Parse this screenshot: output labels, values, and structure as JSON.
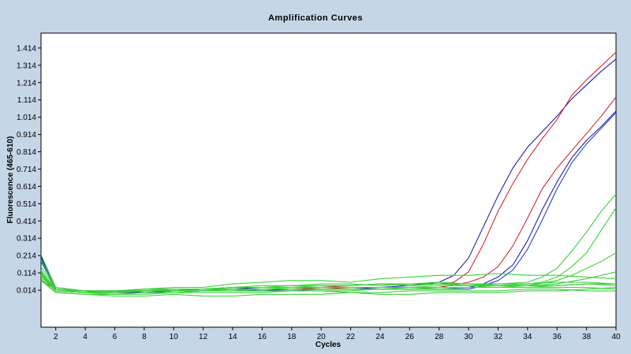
{
  "chart_data": {
    "type": "line",
    "title": "Amplification Curves",
    "xlabel": "Cycles",
    "ylabel": "Fluorescence (465-610)",
    "xlim": [
      1,
      40
    ],
    "ylim": [
      -0.2,
      1.5
    ],
    "x_ticks": [
      2,
      4,
      6,
      8,
      10,
      12,
      14,
      16,
      18,
      20,
      22,
      24,
      26,
      28,
      30,
      32,
      34,
      36,
      38,
      40
    ],
    "y_ticks": [
      0.014,
      0.114,
      0.214,
      0.314,
      0.414,
      0.514,
      0.614,
      0.714,
      0.814,
      0.914,
      1.014,
      1.114,
      1.214,
      1.314,
      1.414
    ],
    "y_tick_labels": [
      "0.014",
      "0.114",
      "0.214",
      "0.314",
      "0.414",
      "0.514",
      "0.614",
      "0.714",
      "0.814",
      "0.914",
      "1.014",
      "1.114",
      "1.214",
      "1.314",
      "1.414"
    ],
    "grid": false,
    "legend": "none",
    "series": [
      {
        "color": "#1f1fa8",
        "x": [
          1,
          2,
          4,
          6,
          8,
          10,
          12,
          14,
          16,
          18,
          20,
          22,
          24,
          26,
          28,
          29,
          30,
          31,
          32,
          33,
          34,
          35,
          36,
          37,
          38,
          39,
          40
        ],
        "y": [
          0.2,
          0.02,
          0.01,
          0.0,
          0.01,
          0.01,
          0.02,
          0.03,
          0.02,
          0.02,
          0.03,
          0.03,
          0.03,
          0.04,
          0.06,
          0.1,
          0.2,
          0.38,
          0.56,
          0.72,
          0.84,
          0.93,
          1.02,
          1.12,
          1.2,
          1.28,
          1.35
        ]
      },
      {
        "color": "#d42a2a",
        "x": [
          1,
          2,
          4,
          6,
          8,
          10,
          12,
          14,
          16,
          18,
          20,
          22,
          24,
          26,
          28,
          29,
          30,
          31,
          32,
          33,
          34,
          35,
          36,
          37,
          38,
          39,
          40
        ],
        "y": [
          0.07,
          0.02,
          0.01,
          0.0,
          0.01,
          0.02,
          0.02,
          0.02,
          0.02,
          0.02,
          0.03,
          0.04,
          0.05,
          0.04,
          0.05,
          0.06,
          0.12,
          0.28,
          0.47,
          0.63,
          0.77,
          0.89,
          1.0,
          1.14,
          1.23,
          1.31,
          1.39
        ]
      },
      {
        "color": "#d42a2a",
        "x": [
          1,
          2,
          4,
          6,
          8,
          10,
          12,
          14,
          16,
          18,
          20,
          22,
          24,
          26,
          28,
          30,
          31,
          32,
          33,
          34,
          35,
          36,
          37,
          38,
          39,
          40
        ],
        "y": [
          0.12,
          0.02,
          0.01,
          0.01,
          0.01,
          0.01,
          0.02,
          0.02,
          0.02,
          0.02,
          0.02,
          0.03,
          0.03,
          0.03,
          0.03,
          0.06,
          0.09,
          0.15,
          0.27,
          0.43,
          0.6,
          0.72,
          0.82,
          0.92,
          1.02,
          1.13
        ]
      },
      {
        "color": "#1f1fa8",
        "x": [
          1,
          2,
          4,
          6,
          8,
          10,
          12,
          14,
          16,
          18,
          20,
          22,
          24,
          26,
          28,
          30,
          31,
          32,
          33,
          34,
          35,
          36,
          37,
          38,
          39,
          40
        ],
        "y": [
          0.21,
          0.01,
          0.0,
          0.01,
          0.0,
          0.01,
          0.02,
          0.02,
          0.01,
          0.02,
          0.02,
          0.02,
          0.03,
          0.03,
          0.03,
          0.03,
          0.05,
          0.09,
          0.16,
          0.3,
          0.48,
          0.64,
          0.78,
          0.88,
          0.96,
          1.05
        ]
      },
      {
        "color": "#2b3fd0",
        "x": [
          1,
          2,
          4,
          6,
          8,
          10,
          12,
          14,
          16,
          18,
          20,
          22,
          24,
          26,
          28,
          30,
          31,
          32,
          33,
          34,
          35,
          36,
          37,
          38,
          39,
          40
        ],
        "y": [
          0.18,
          0.02,
          0.01,
          0.0,
          0.0,
          0.01,
          0.01,
          0.02,
          0.01,
          0.01,
          0.02,
          0.02,
          0.02,
          0.02,
          0.02,
          0.02,
          0.04,
          0.07,
          0.13,
          0.25,
          0.42,
          0.6,
          0.75,
          0.86,
          0.95,
          1.04
        ]
      },
      {
        "color": "#3ad23a",
        "x": [
          1,
          2,
          4,
          6,
          8,
          10,
          12,
          14,
          16,
          18,
          20,
          22,
          24,
          26,
          28,
          30,
          32,
          34,
          35,
          36,
          37,
          38,
          39,
          40
        ],
        "y": [
          0.22,
          0.03,
          0.01,
          0.01,
          0.02,
          0.02,
          0.02,
          0.02,
          0.02,
          0.03,
          0.03,
          0.03,
          0.03,
          0.03,
          0.04,
          0.04,
          0.05,
          0.06,
          0.09,
          0.14,
          0.24,
          0.35,
          0.47,
          0.57
        ]
      },
      {
        "color": "#3ad23a",
        "x": [
          1,
          2,
          4,
          6,
          8,
          10,
          12,
          14,
          16,
          18,
          20,
          22,
          24,
          26,
          28,
          30,
          32,
          34,
          35,
          36,
          37,
          38,
          39,
          40
        ],
        "y": [
          0.15,
          0.02,
          0.0,
          0.01,
          0.01,
          0.01,
          0.02,
          0.02,
          0.02,
          0.02,
          0.02,
          0.02,
          0.02,
          0.03,
          0.03,
          0.03,
          0.04,
          0.05,
          0.06,
          0.09,
          0.15,
          0.23,
          0.36,
          0.49
        ]
      },
      {
        "color": "#3ad23a",
        "x": [
          1,
          2,
          4,
          6,
          8,
          10,
          12,
          14,
          16,
          18,
          20,
          22,
          24,
          26,
          28,
          30,
          32,
          34,
          36,
          37,
          38,
          39,
          40
        ],
        "y": [
          0.13,
          0.01,
          0.0,
          0.0,
          0.01,
          0.01,
          0.01,
          0.02,
          0.02,
          0.02,
          0.02,
          0.02,
          0.02,
          0.02,
          0.03,
          0.03,
          0.03,
          0.04,
          0.07,
          0.1,
          0.14,
          0.18,
          0.23
        ]
      },
      {
        "color": "#3ad23a",
        "x": [
          1,
          2,
          4,
          6,
          8,
          10,
          12,
          14,
          16,
          18,
          20,
          22,
          24,
          26,
          28,
          30,
          32,
          34,
          36,
          38,
          40
        ],
        "y": [
          0.1,
          0.02,
          0.01,
          0.01,
          0.02,
          0.03,
          0.03,
          0.05,
          0.06,
          0.07,
          0.07,
          0.06,
          0.08,
          0.09,
          0.1,
          0.1,
          0.11,
          0.1,
          0.1,
          0.09,
          0.08
        ]
      },
      {
        "color": "#3ad23a",
        "x": [
          1,
          2,
          4,
          6,
          8,
          10,
          12,
          14,
          16,
          18,
          20,
          22,
          24,
          26,
          28,
          30,
          32,
          34,
          36,
          38,
          40
        ],
        "y": [
          0.12,
          0.01,
          0.0,
          0.01,
          0.01,
          0.01,
          0.02,
          0.03,
          0.04,
          0.04,
          0.05,
          0.05,
          0.04,
          0.05,
          0.05,
          0.04,
          0.04,
          0.04,
          0.05,
          0.08,
          0.12
        ]
      },
      {
        "color": "#3ad23a",
        "x": [
          1,
          2,
          4,
          6,
          8,
          10,
          12,
          14,
          16,
          18,
          20,
          22,
          24,
          26,
          28,
          30,
          32,
          34,
          36,
          38,
          40
        ],
        "y": [
          0.11,
          0.02,
          0.01,
          0.0,
          0.02,
          0.02,
          0.02,
          0.03,
          0.03,
          0.04,
          0.04,
          0.04,
          0.05,
          0.05,
          0.06,
          0.05,
          0.05,
          0.05,
          0.06,
          0.06,
          0.05
        ]
      },
      {
        "color": "#3ad23a",
        "x": [
          1,
          2,
          4,
          6,
          8,
          10,
          12,
          14,
          16,
          18,
          20,
          22,
          24,
          26,
          28,
          30,
          32,
          34,
          36,
          38,
          40
        ],
        "y": [
          0.09,
          0.01,
          0.0,
          0.0,
          0.01,
          0.01,
          0.01,
          0.01,
          0.02,
          0.02,
          0.02,
          0.02,
          0.02,
          0.02,
          0.03,
          0.03,
          0.03,
          0.03,
          0.04,
          0.05,
          0.05
        ]
      },
      {
        "color": "#3ad23a",
        "x": [
          1,
          2,
          4,
          6,
          8,
          10,
          12,
          14,
          16,
          18,
          20,
          22,
          24,
          26,
          28,
          30,
          32,
          34,
          36,
          38,
          40
        ],
        "y": [
          0.08,
          0.0,
          -0.01,
          -0.01,
          0.0,
          0.0,
          0.01,
          0.01,
          0.01,
          0.01,
          0.01,
          0.01,
          0.02,
          0.02,
          0.02,
          0.03,
          0.03,
          0.03,
          0.03,
          0.03,
          0.02
        ]
      },
      {
        "color": "#3ad23a",
        "x": [
          1,
          2,
          4,
          6,
          8,
          10,
          12,
          14,
          16,
          18,
          20,
          22,
          24,
          26,
          28,
          30,
          32,
          34,
          36,
          38,
          40
        ],
        "y": [
          0.1,
          0.01,
          0.0,
          -0.01,
          -0.01,
          0.0,
          0.0,
          0.0,
          0.0,
          0.01,
          0.01,
          0.0,
          0.0,
          0.01,
          0.01,
          0.01,
          0.01,
          0.02,
          0.02,
          0.01,
          0.01
        ]
      },
      {
        "color": "#3ad23a",
        "x": [
          1,
          2,
          4,
          6,
          8,
          10,
          12,
          14,
          16,
          18,
          20,
          22,
          24,
          26,
          28,
          30,
          32,
          34,
          36,
          38,
          40
        ],
        "y": [
          0.07,
          0.0,
          -0.01,
          -0.02,
          -0.02,
          -0.01,
          -0.02,
          -0.02,
          -0.01,
          -0.01,
          -0.01,
          0.0,
          -0.01,
          -0.01,
          0.0,
          0.0,
          0.0,
          0.01,
          0.01,
          0.02,
          0.03
        ]
      },
      {
        "color": "#3ad23a",
        "x": [
          1,
          2,
          4,
          6,
          8,
          10,
          12,
          14,
          16,
          18,
          20,
          22,
          24,
          26,
          28,
          30,
          32,
          34,
          36,
          38,
          40
        ],
        "y": [
          0.19,
          0.02,
          0.01,
          0.01,
          0.01,
          0.02,
          0.02,
          0.03,
          0.03,
          0.03,
          0.04,
          0.04,
          0.05,
          0.04,
          0.05,
          0.05,
          0.04,
          0.04,
          0.04,
          0.05,
          0.04
        ]
      }
    ]
  }
}
